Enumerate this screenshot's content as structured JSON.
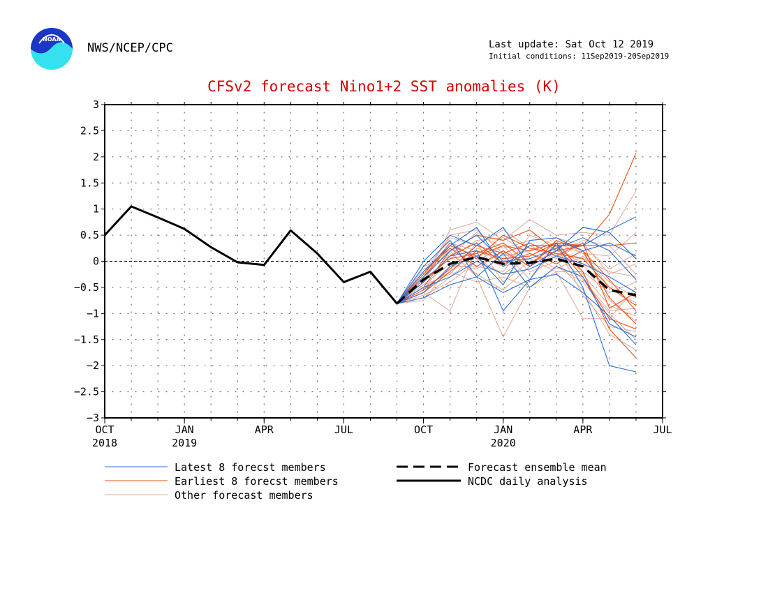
{
  "header": {
    "logo_text": "NOAA",
    "org": "NWS/NCEP/CPC",
    "last_update": "Last update: Sat Oct 12 2019",
    "initial_conditions": "Initial conditions: 11Sep2019-20Sep2019"
  },
  "legend": {
    "latest": "Latest 8 forecst members",
    "earliest": "Earliest 8 forecst members",
    "other": "Other forecast members",
    "mean": "Forecast ensemble mean",
    "ncdc": "NCDC daily analysis"
  },
  "colors": {
    "title": "#d40000",
    "latest": "#2a6fd6",
    "earliest": "#e8511a",
    "other": "#e0a898",
    "analysis": "#000000"
  },
  "chart_data": {
    "type": "line",
    "title": "CFSv2 forecast Nino1+2 SST anomalies (K)",
    "ylim": [
      -3,
      3
    ],
    "yticks": [
      -3,
      -2.5,
      -2,
      -1.5,
      -1,
      -0.5,
      0,
      0.5,
      1,
      1.5,
      2,
      2.5,
      3
    ],
    "ytick_labels": [
      "−3",
      "−2.5",
      "−2",
      "−1.5",
      "−1",
      "−0.5",
      "0",
      "0.5",
      "1",
      "1.5",
      "2",
      "2.5",
      "3"
    ],
    "xlim": [
      "2018-10",
      "2020-07"
    ],
    "xticks": [
      {
        "x": "2018-10",
        "label": "OCT",
        "year": "2018"
      },
      {
        "x": "2019-01",
        "label": "JAN",
        "year": "2019"
      },
      {
        "x": "2019-04",
        "label": "APR",
        "year": ""
      },
      {
        "x": "2019-07",
        "label": "JUL",
        "year": ""
      },
      {
        "x": "2019-10",
        "label": "OCT",
        "year": ""
      },
      {
        "x": "2020-01",
        "label": "JAN",
        "year": "2020"
      },
      {
        "x": "2020-04",
        "label": "APR",
        "year": ""
      },
      {
        "x": "2020-07",
        "label": "JUL",
        "year": ""
      }
    ],
    "grid": true,
    "zero_line": true,
    "analysis": {
      "x": [
        "2018-10",
        "2018-11",
        "2018-12",
        "2019-01",
        "2019-02",
        "2019-03",
        "2019-04",
        "2019-05",
        "2019-06",
        "2019-07",
        "2019-08",
        "2019-09"
      ],
      "values": [
        0.5,
        1.05,
        0.84,
        0.62,
        0.27,
        -0.02,
        -0.07,
        0.59,
        0.15,
        -0.4,
        -0.2,
        -0.81
      ]
    },
    "forecast_months": [
      "2019-09",
      "2019-10",
      "2019-11",
      "2019-12",
      "2020-01",
      "2020-02",
      "2020-03",
      "2020-04",
      "2020-05",
      "2020-06"
    ],
    "ensemble_mean": [
      -0.81,
      -0.35,
      -0.05,
      0.08,
      -0.05,
      -0.03,
      0.05,
      -0.1,
      -0.55,
      -0.65
    ],
    "latest_members": [
      [
        -0.81,
        0.0,
        0.5,
        0.3,
        0.65,
        -0.1,
        0.2,
        0.65,
        0.55,
        0.05
      ],
      [
        -0.81,
        -0.2,
        0.3,
        0.65,
        -0.1,
        0.3,
        0.3,
        0.3,
        0.6,
        0.85
      ],
      [
        -0.81,
        -0.4,
        0.1,
        0.2,
        -0.95,
        -0.35,
        0.35,
        -0.5,
        -2.0,
        -2.12
      ],
      [
        -0.81,
        -0.6,
        -0.1,
        0.1,
        -0.45,
        0.4,
        0.45,
        0.2,
        0.35,
        0.1
      ],
      [
        -0.81,
        -0.1,
        0.4,
        -0.3,
        0.15,
        -0.5,
        -0.1,
        -0.3,
        -1.2,
        -1.45
      ],
      [
        -0.81,
        -0.5,
        -0.3,
        0.0,
        -0.25,
        -0.15,
        0.1,
        -0.05,
        -0.3,
        -0.6
      ],
      [
        -0.81,
        -0.3,
        0.2,
        0.5,
        0.0,
        0.05,
        0.25,
        0.45,
        0.2,
        -0.35
      ],
      [
        -0.81,
        -0.7,
        -0.45,
        -0.3,
        -0.6,
        -0.35,
        -0.25,
        -0.6,
        -1.05,
        -1.6
      ]
    ],
    "earliest_members": [
      [
        -0.81,
        -0.5,
        0.2,
        0.5,
        0.4,
        0.6,
        0.2,
        0.3,
        0.9,
        2.07
      ],
      [
        -0.81,
        -0.3,
        0.3,
        0.1,
        0.3,
        0.2,
        0.35,
        0.3,
        0.3,
        0.35
      ],
      [
        -0.81,
        -0.6,
        -0.2,
        0.2,
        0.05,
        0.1,
        0.35,
        -0.2,
        -1.3,
        -1.85
      ],
      [
        -0.81,
        -0.4,
        0.1,
        0.35,
        -0.05,
        0.15,
        -0.05,
        0.2,
        -0.7,
        -1.2
      ],
      [
        -0.81,
        -0.2,
        0.25,
        -0.1,
        0.2,
        -0.1,
        0.4,
        0.2,
        -0.35,
        -0.95
      ],
      [
        -0.81,
        -0.55,
        -0.15,
        0.3,
        0.15,
        0.35,
        0.1,
        0.35,
        -0.9,
        -0.6
      ],
      [
        -0.81,
        -0.35,
        0.05,
        0.15,
        0.35,
        -0.05,
        0.3,
        -0.3,
        -1.1,
        -1.3
      ],
      [
        -0.81,
        -0.25,
        0.35,
        0.05,
        0.5,
        0.25,
        0.15,
        0.05,
        -0.5,
        -0.85
      ]
    ],
    "other_members": [
      [
        -0.81,
        -0.4,
        0.6,
        0.75,
        0.4,
        0.8,
        0.5,
        0.55,
        0.5,
        1.35
      ],
      [
        -0.81,
        -0.3,
        0.2,
        -0.3,
        -1.45,
        -0.5,
        -0.2,
        -1.1,
        -1.1,
        -0.5
      ],
      [
        -0.81,
        -0.6,
        -0.95,
        0.25,
        0.1,
        0.2,
        0.45,
        0.15,
        0.1,
        0.55
      ],
      [
        -0.81,
        -0.2,
        0.45,
        0.3,
        0.6,
        0.25,
        0.1,
        0.4,
        0.3,
        -0.25
      ],
      [
        -0.81,
        -0.5,
        -0.2,
        -0.4,
        -0.3,
        -0.5,
        -0.1,
        -0.4,
        -1.0,
        -1.5
      ],
      [
        -0.81,
        -0.7,
        -0.3,
        0.1,
        -0.1,
        0.05,
        -0.2,
        -0.2,
        -0.6,
        -0.4
      ],
      [
        -0.81,
        -0.1,
        0.1,
        0.55,
        0.25,
        0.4,
        0.45,
        0.3,
        -0.15,
        0.15
      ],
      [
        -0.81,
        -0.45,
        -0.05,
        -0.15,
        0.2,
        -0.35,
        0.25,
        -0.05,
        -0.75,
        -1.15
      ],
      [
        -0.81,
        -0.35,
        0.25,
        0.05,
        -0.25,
        0.1,
        0.35,
        0.15,
        -0.5,
        -0.8
      ],
      [
        -0.81,
        -0.65,
        -0.4,
        0.0,
        0.3,
        -0.2,
        0.0,
        -0.55,
        -1.4,
        -1.7
      ],
      [
        -0.81,
        -0.25,
        0.35,
        0.2,
        0.0,
        0.3,
        0.05,
        0.35,
        -0.25,
        -0.05
      ],
      [
        -0.81,
        -0.55,
        0.15,
        -0.25,
        -0.55,
        -0.1,
        0.4,
        -0.25,
        -0.85,
        -1.05
      ],
      [
        -0.81,
        -0.15,
        0.05,
        0.4,
        0.45,
        0.15,
        -0.15,
        0.1,
        -0.4,
        -0.7
      ],
      [
        -0.81,
        -0.75,
        -0.1,
        -0.1,
        -0.2,
        0.5,
        0.3,
        -0.65,
        -1.25,
        -1.35
      ],
      [
        -0.81,
        -0.3,
        0.5,
        0.6,
        0.15,
        -0.05,
        0.2,
        0.05,
        -0.2,
        -0.3
      ],
      [
        -0.81,
        -0.45,
        -0.25,
        0.35,
        -0.4,
        0.0,
        0.15,
        -0.35,
        -0.95,
        -0.9
      ]
    ]
  }
}
